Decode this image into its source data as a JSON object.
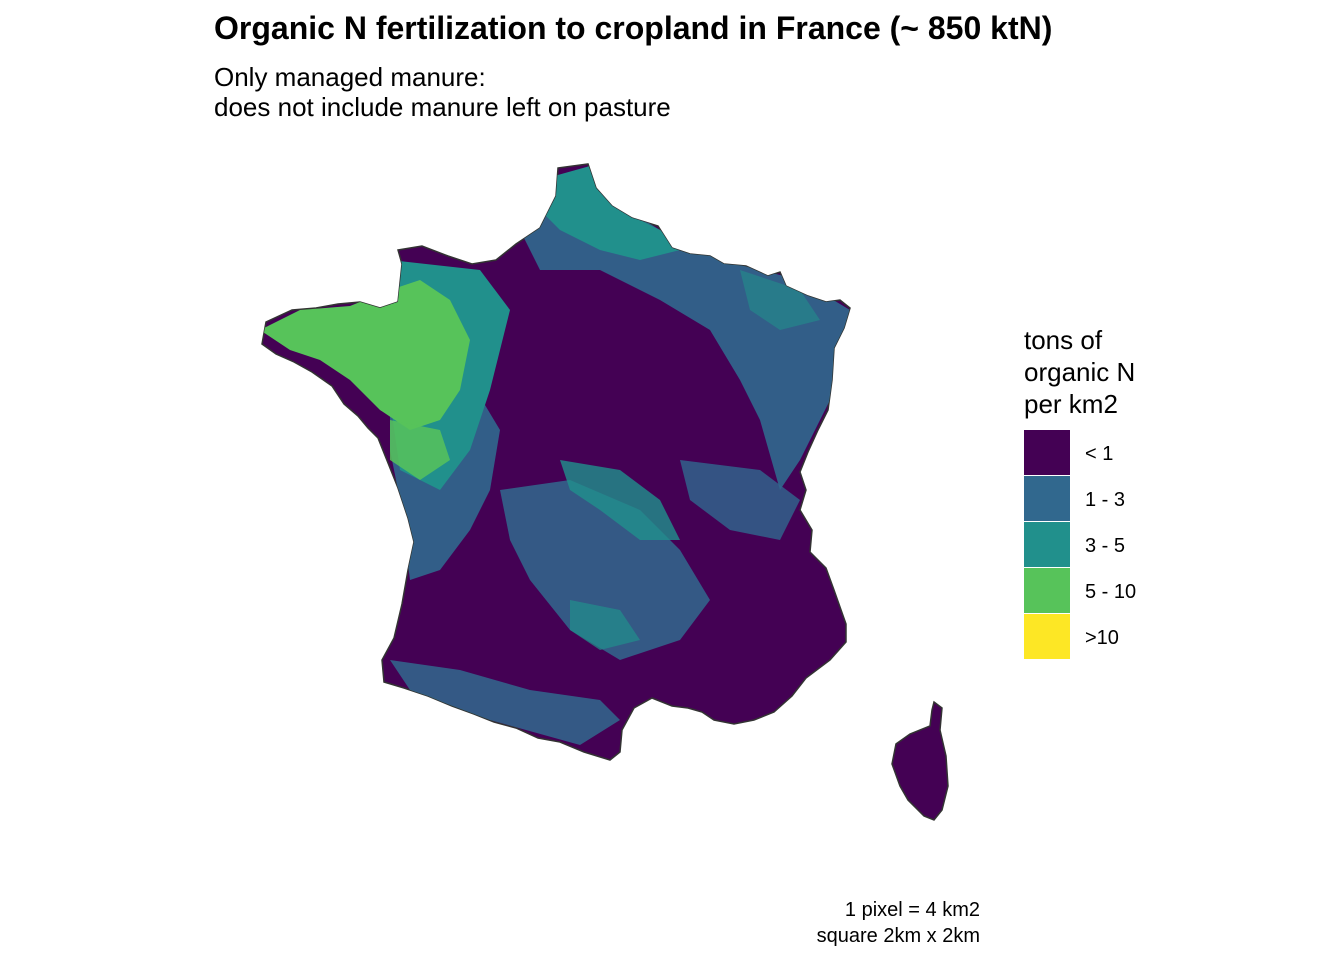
{
  "title": "Organic N fertilization to cropland in France (~ 850 ktN)",
  "subtitle_lines": [
    "Only managed manure:",
    "does not include manure left on pasture"
  ],
  "legend": {
    "title_lines": [
      "tons of",
      "organic N",
      "per km2"
    ],
    "items": [
      {
        "label": "< 1",
        "color": "#440154"
      },
      {
        "label": "1 - 3",
        "color": "#31688E"
      },
      {
        "label": "3 - 5",
        "color": "#21908C"
      },
      {
        "label": "5 - 10",
        "color": "#57C35A"
      },
      {
        "label": ">10",
        "color": "#FDE725"
      }
    ]
  },
  "caption_lines": [
    "1 pixel = 4 km2",
    "square 2km x 2km"
  ],
  "map": {
    "region": "France",
    "areas": [
      {
        "name": "Brittany and western France",
        "class": "5 - 10"
      },
      {
        "name": "Normandy and northern coast",
        "class": "3 - 5"
      },
      {
        "name": "Northeast",
        "class": "1 - 3"
      },
      {
        "name": "Paris basin and center",
        "class": "< 1"
      },
      {
        "name": "Southwest",
        "class": "< 1"
      },
      {
        "name": "Southeast and Alps",
        "class": "< 1"
      },
      {
        "name": "Corsica",
        "class": "< 1"
      }
    ]
  }
}
